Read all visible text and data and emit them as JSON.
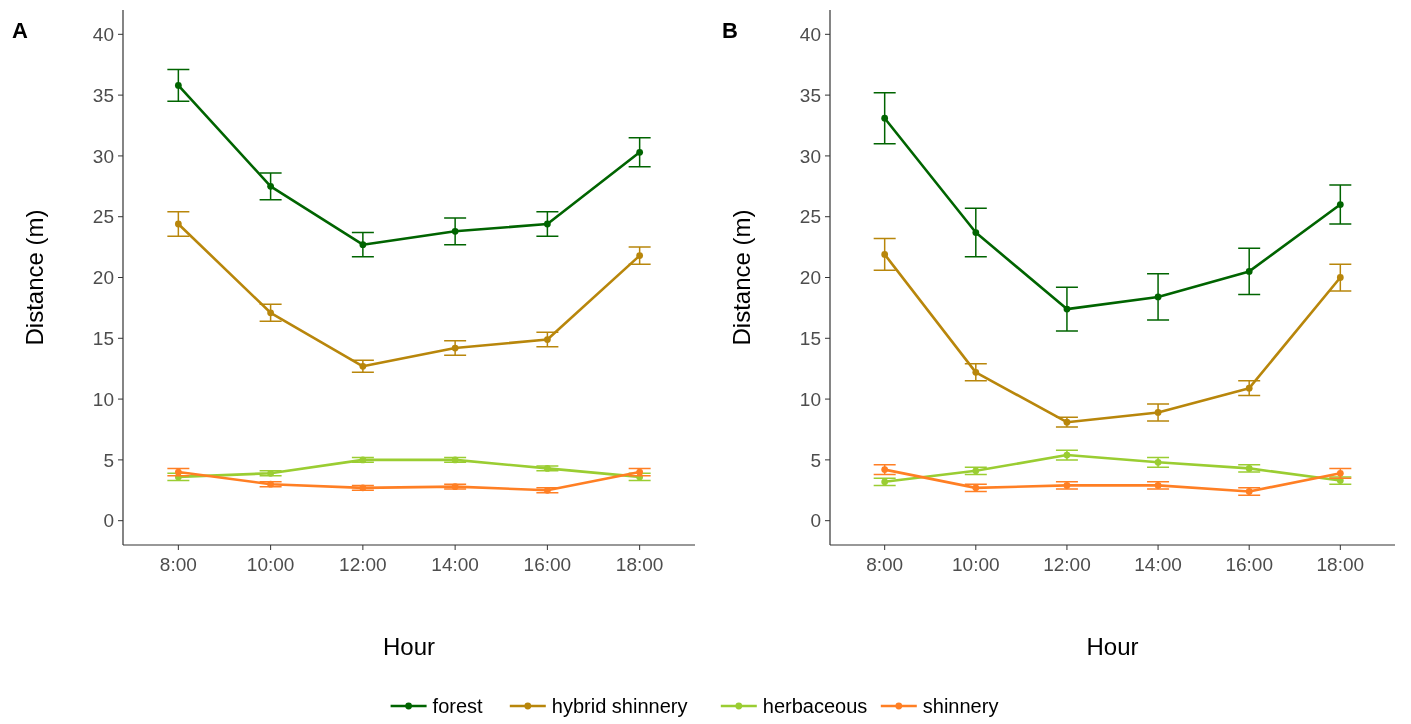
{
  "chart_data": [
    {
      "type": "line",
      "title": "A",
      "xlabel": "Hour",
      "ylabel": "Distance (m)",
      "categories": [
        "8:00",
        "10:00",
        "12:00",
        "14:00",
        "16:00",
        "18:00"
      ],
      "ylim": [
        -2,
        42
      ],
      "yticks": [
        0,
        5,
        10,
        15,
        20,
        25,
        30,
        35,
        40
      ],
      "grid": false,
      "legend": "bottom",
      "marker": "circle",
      "line_style": "solid",
      "series": [
        {
          "name": "forest",
          "color": "#006400",
          "values": [
            35.8,
            27.5,
            22.7,
            23.8,
            24.4,
            30.3
          ],
          "errors": [
            1.3,
            1.1,
            1.0,
            1.1,
            1.0,
            1.2
          ]
        },
        {
          "name": "hybrid shinnery",
          "color": "#b8860b",
          "values": [
            24.4,
            17.1,
            12.7,
            14.2,
            14.9,
            21.8
          ],
          "errors": [
            1.0,
            0.7,
            0.5,
            0.6,
            0.6,
            0.7
          ]
        },
        {
          "name": "herbaceous",
          "color": "#9acd32",
          "values": [
            3.6,
            3.9,
            5.0,
            5.0,
            4.3,
            3.6
          ],
          "errors": [
            0.3,
            0.2,
            0.2,
            0.2,
            0.2,
            0.3
          ]
        },
        {
          "name": "shinnery",
          "color": "#ff7f24",
          "values": [
            4.0,
            3.0,
            2.7,
            2.8,
            2.5,
            4.0
          ],
          "errors": [
            0.3,
            0.2,
            0.2,
            0.2,
            0.2,
            0.3
          ]
        }
      ]
    },
    {
      "type": "line",
      "title": "B",
      "xlabel": "Hour",
      "ylabel": "Distance (m)",
      "categories": [
        "8:00",
        "10:00",
        "12:00",
        "14:00",
        "16:00",
        "18:00"
      ],
      "ylim": [
        -2,
        42
      ],
      "yticks": [
        0,
        5,
        10,
        15,
        20,
        25,
        30,
        35,
        40
      ],
      "grid": false,
      "marker": "circle",
      "line_style": "solid",
      "series": [
        {
          "name": "forest",
          "color": "#006400",
          "values": [
            33.1,
            23.7,
            17.4,
            18.4,
            20.5,
            26.0
          ],
          "errors": [
            2.1,
            2.0,
            1.8,
            1.9,
            1.9,
            1.6
          ]
        },
        {
          "name": "hybrid shinnery",
          "color": "#b8860b",
          "values": [
            21.9,
            12.2,
            8.1,
            8.9,
            10.9,
            20.0
          ],
          "errors": [
            1.3,
            0.7,
            0.4,
            0.7,
            0.6,
            1.1
          ]
        },
        {
          "name": "herbaceous",
          "color": "#9acd32",
          "values": [
            3.2,
            4.1,
            5.4,
            4.8,
            4.3,
            3.3
          ],
          "errors": [
            0.3,
            0.3,
            0.4,
            0.4,
            0.3,
            0.3
          ]
        },
        {
          "name": "shinnery",
          "color": "#ff7f24",
          "values": [
            4.2,
            2.7,
            2.9,
            2.9,
            2.4,
            3.9
          ],
          "errors": [
            0.4,
            0.3,
            0.3,
            0.3,
            0.3,
            0.4
          ]
        }
      ]
    }
  ]
}
